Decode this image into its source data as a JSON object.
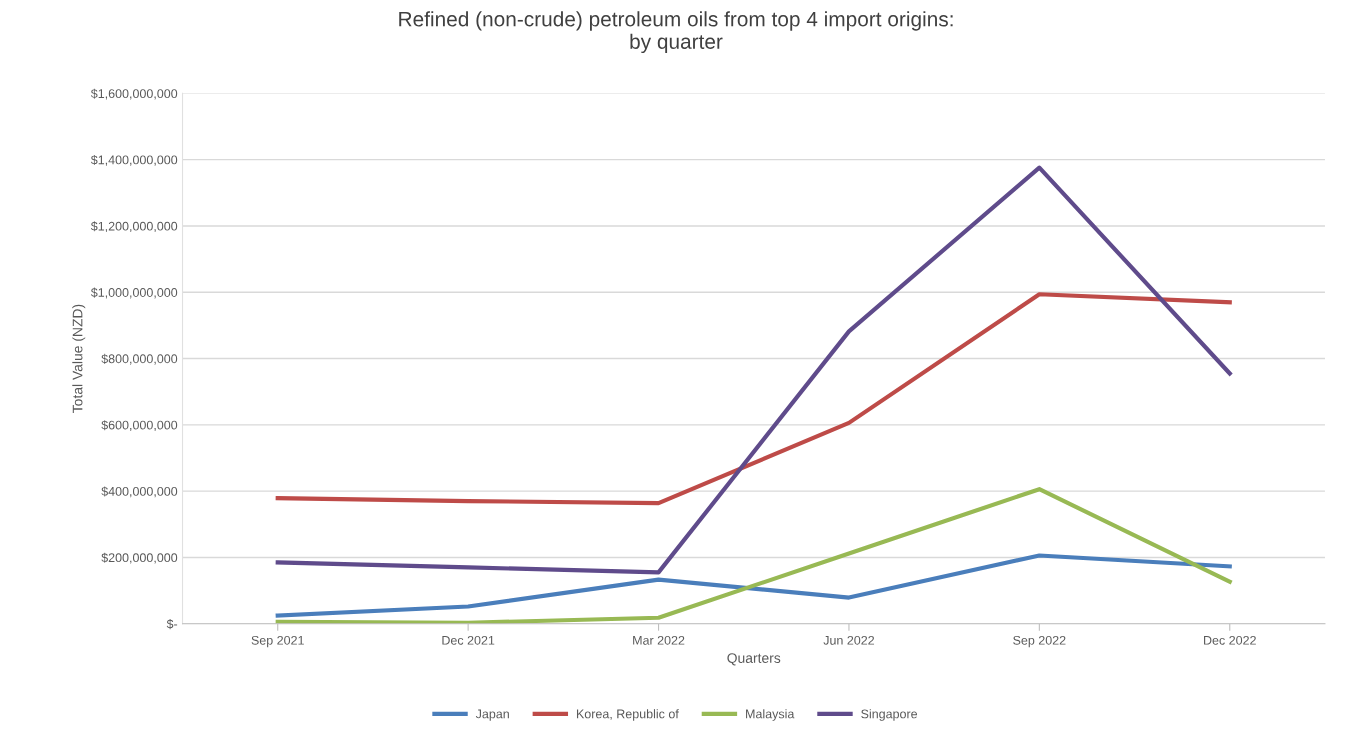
{
  "chart_data": {
    "type": "line",
    "title": "Refined (non-crude) petroleum oils from top 4 import origins:\nby quarter",
    "xlabel": "Quarters",
    "ylabel": "Total Value (NZD)",
    "categories": [
      "Sep 2021",
      "Dec 2021",
      "Mar 2022",
      "Jun 2022",
      "Sep 2022",
      "Dec 2022"
    ],
    "series": [
      {
        "name": "Japan",
        "color": "#4a7ebb",
        "values": [
          25000000,
          52000000,
          133000000,
          79000000,
          206000000,
          173000000
        ]
      },
      {
        "name": "Korea, Republic of",
        "color": "#be4b48",
        "values": [
          379000000,
          370000000,
          364000000,
          606000000,
          994000000,
          970000000
        ]
      },
      {
        "name": "Malaysia",
        "color": "#98b954",
        "values": [
          6000000,
          3000000,
          18000000,
          212000000,
          406000000,
          127000000
        ]
      },
      {
        "name": "Singapore",
        "color": "#5f4b8b",
        "values": [
          185000000,
          170000000,
          155000000,
          882000000,
          1376000000,
          755000000
        ]
      }
    ],
    "ylim": [
      0,
      1600000000
    ],
    "yticks": [
      {
        "value": 0,
        "label": "$-"
      },
      {
        "value": 200000000,
        "label": "$200,000,000"
      },
      {
        "value": 400000000,
        "label": "$400,000,000"
      },
      {
        "value": 600000000,
        "label": "$600,000,000"
      },
      {
        "value": 800000000,
        "label": "$800,000,000"
      },
      {
        "value": 1000000000,
        "label": "$1,000,000,000"
      },
      {
        "value": 1200000000,
        "label": "$1,200,000,000"
      },
      {
        "value": 1400000000,
        "label": "$1,400,000,000"
      },
      {
        "value": 1600000000,
        "label": "$1,600,000,000"
      }
    ],
    "grid": "y",
    "legend": "bottom",
    "marker": "none",
    "line_style": "solid"
  }
}
